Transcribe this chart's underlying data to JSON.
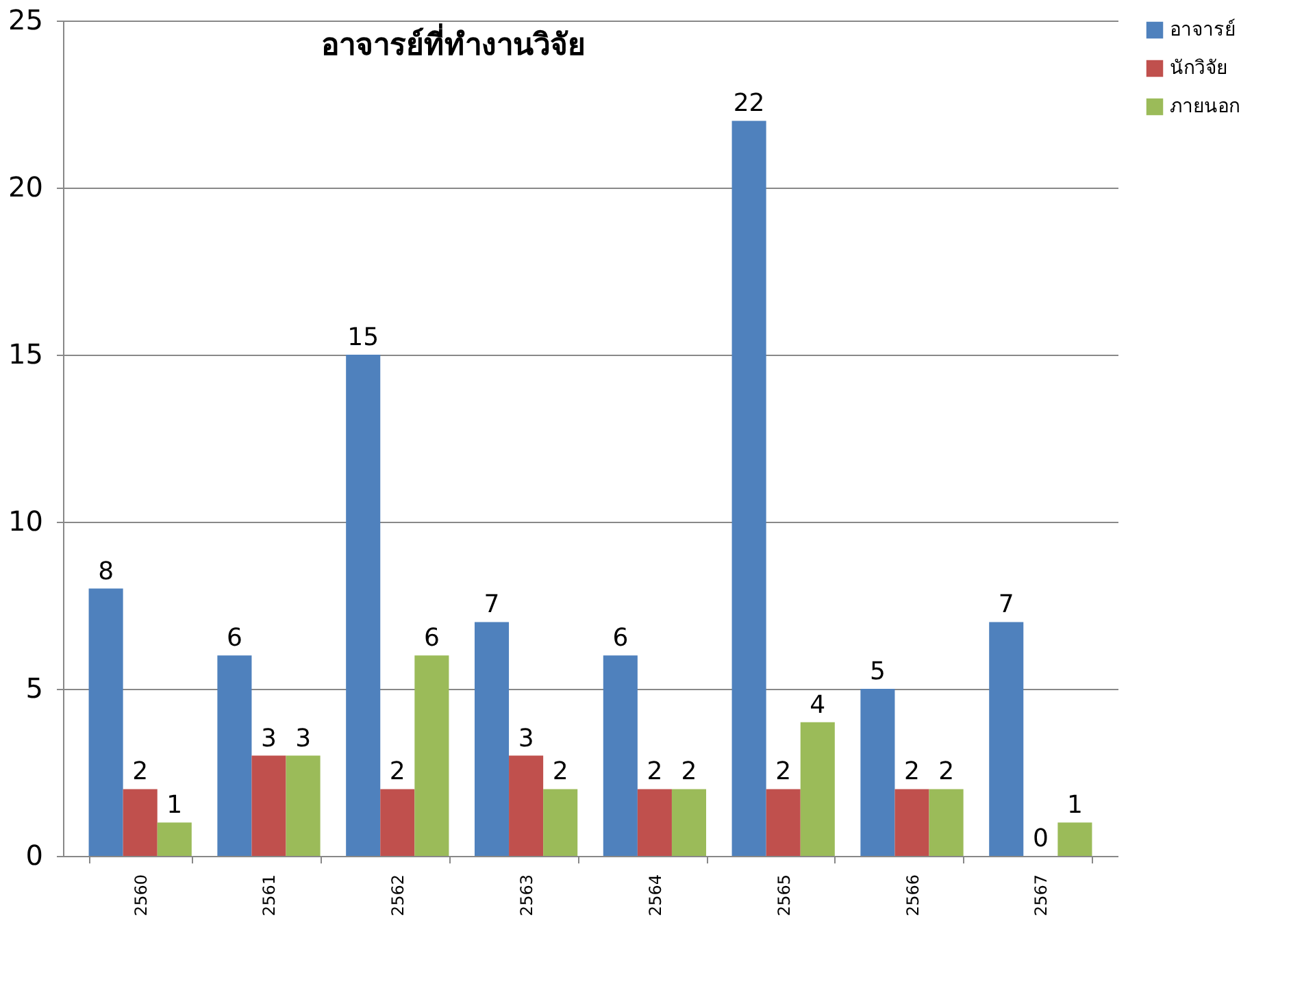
{
  "chart_data": {
    "type": "bar",
    "title": "อาจารย์ที่ทำงานวิจัย",
    "categories": [
      "2560",
      "2561",
      "2562",
      "2563",
      "2564",
      "2565",
      "2566",
      "2567"
    ],
    "series": [
      {
        "name": "อาจารย์",
        "color": "#4f81bd",
        "values": [
          8,
          6,
          15,
          7,
          6,
          22,
          5,
          7
        ]
      },
      {
        "name": "นักวิจัย",
        "color": "#c0504d",
        "values": [
          2,
          3,
          2,
          3,
          2,
          2,
          2,
          0
        ]
      },
      {
        "name": "ภายนอก",
        "color": "#9bbb59",
        "values": [
          1,
          3,
          6,
          2,
          2,
          4,
          2,
          1
        ]
      }
    ],
    "ylim": [
      0,
      25
    ],
    "yticks": [
      0,
      5,
      10,
      15,
      20,
      25
    ],
    "grid": "y",
    "legend": "right",
    "data_labels": true
  }
}
